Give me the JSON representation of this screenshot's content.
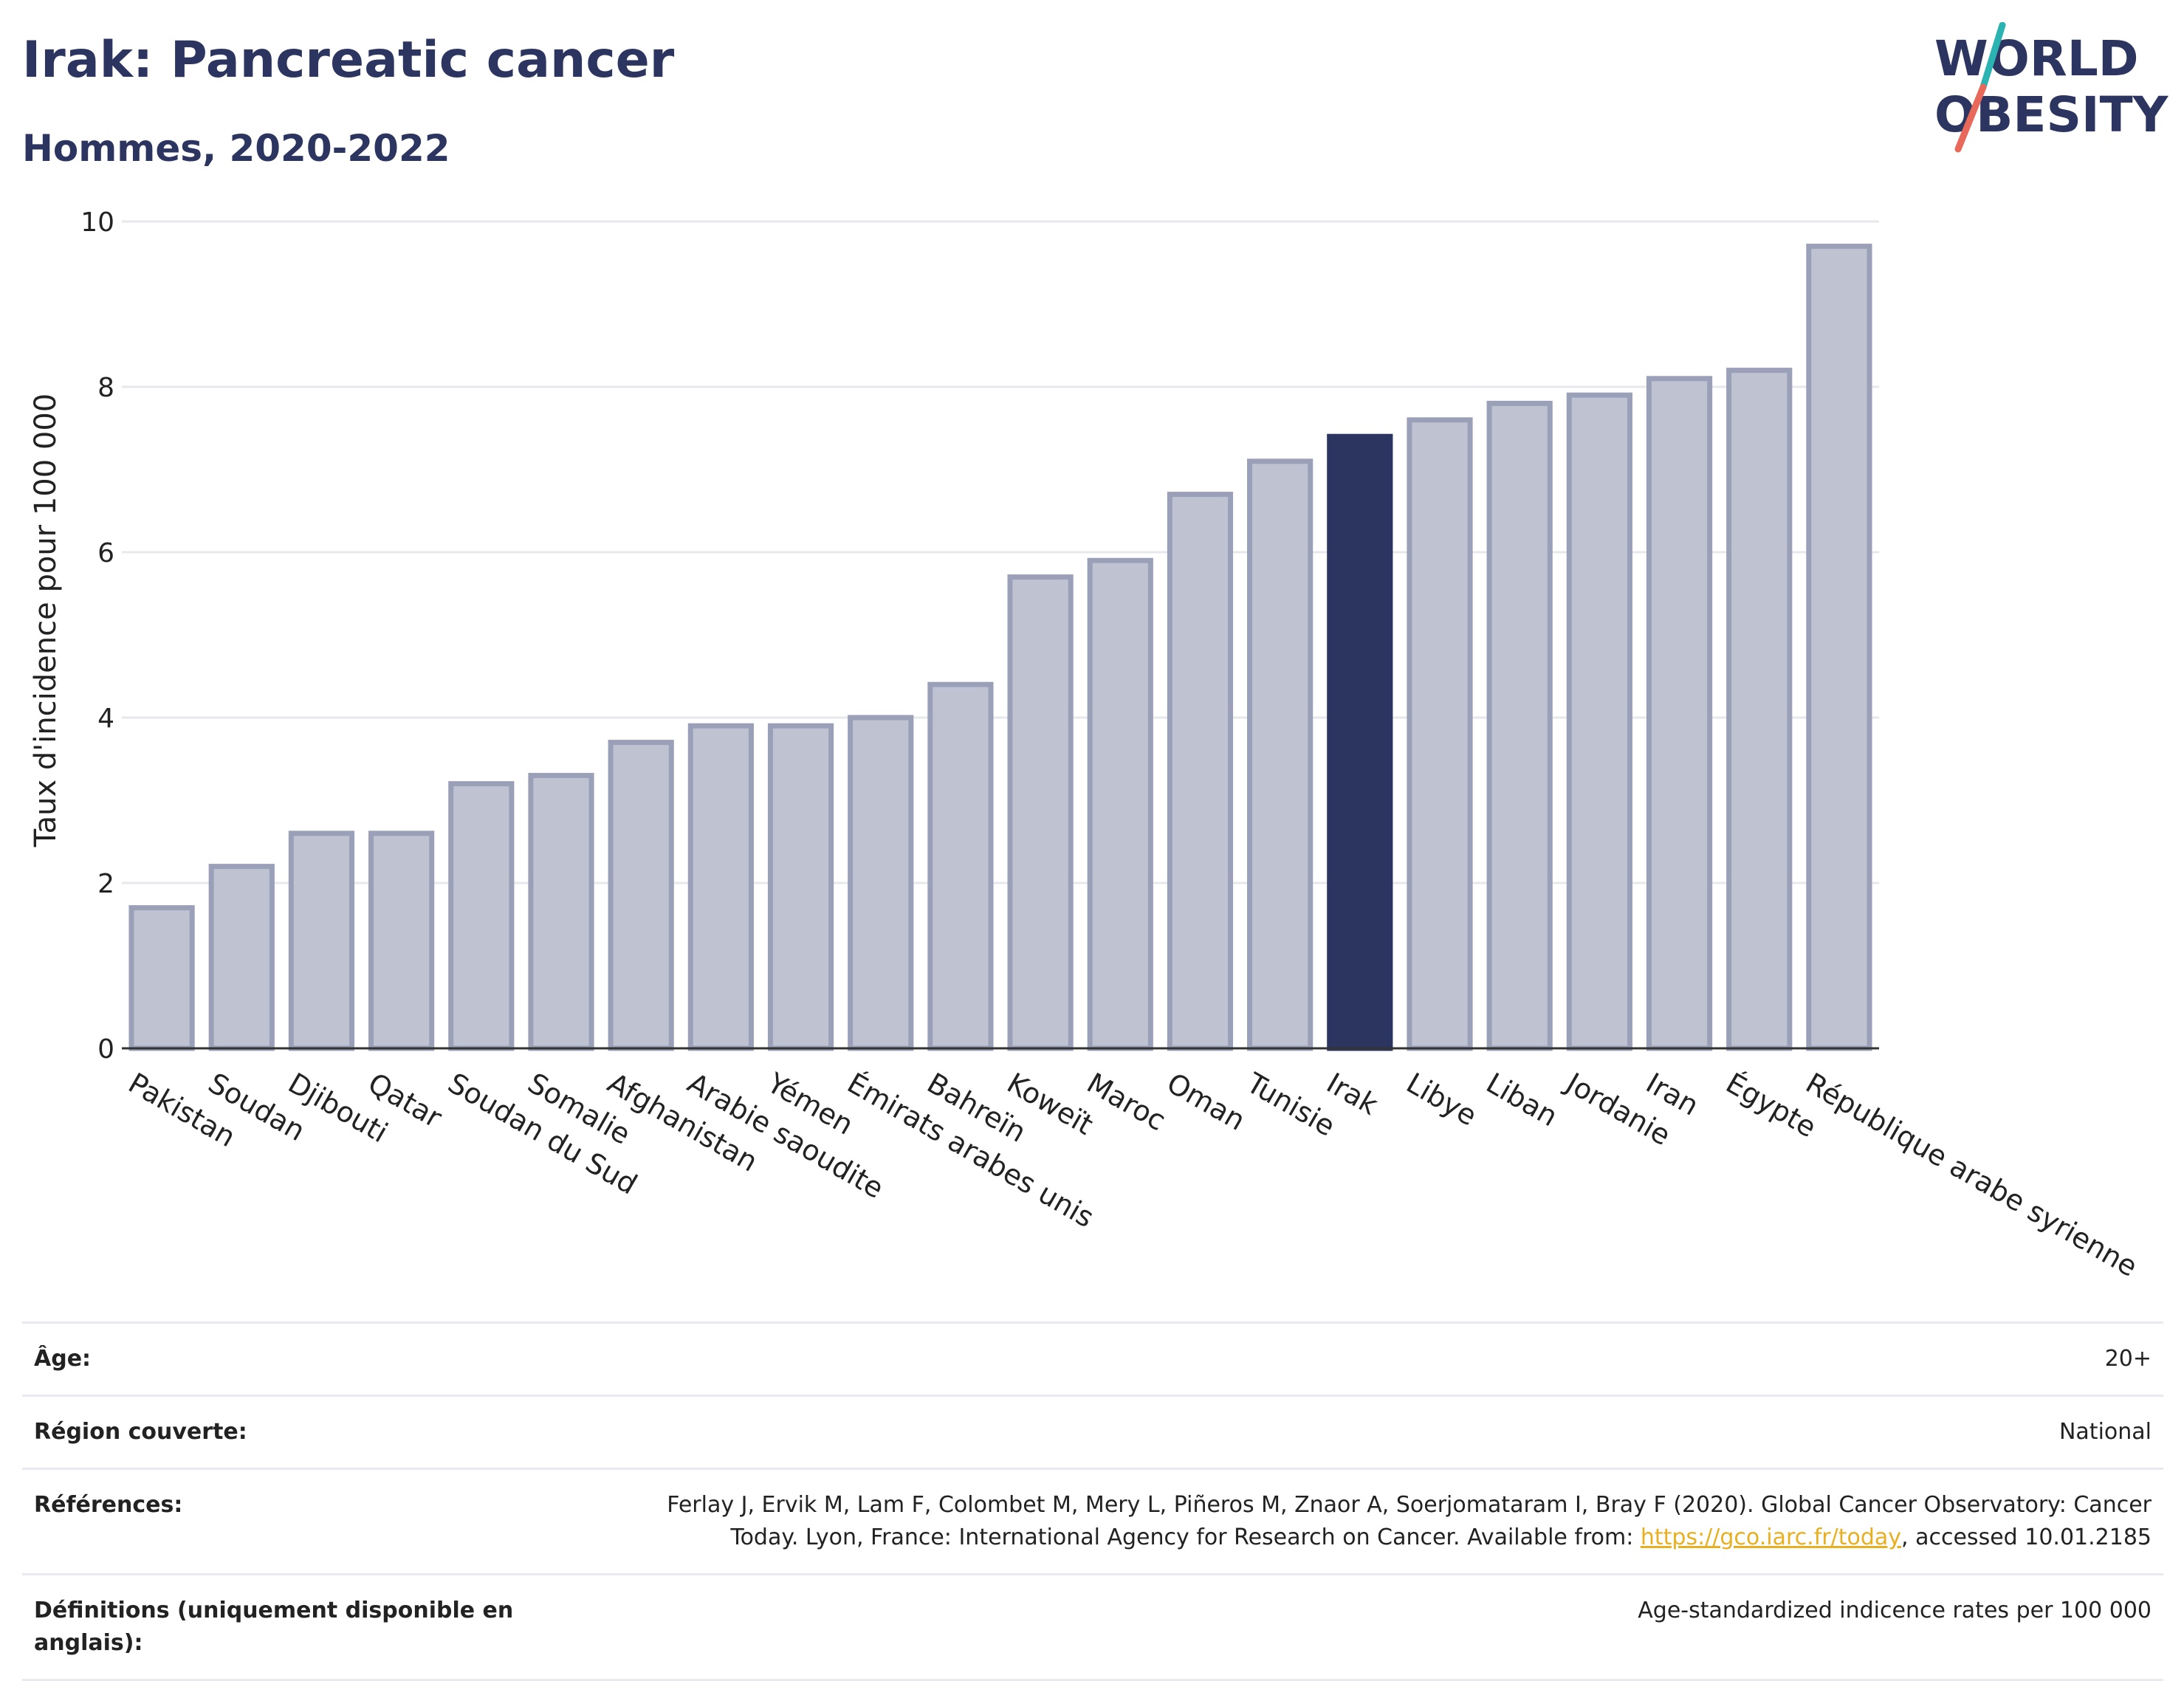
{
  "header": {
    "title": "Irak: Pancreatic cancer",
    "subtitle": "Hommes, 2020-2022"
  },
  "logo": {
    "line1": "WORLD",
    "line2": "OBESITY",
    "colors": {
      "text": "#2b3560",
      "slash_top": "#2ab3b0",
      "slash_bottom": "#e8685a"
    }
  },
  "colors": {
    "bar_fill": "#bfc3d1",
    "bar_stroke": "#9aa0b8",
    "highlight": "#2b3560",
    "grid": "#e6e8ee",
    "axis": "#333333"
  },
  "chart_data": {
    "type": "bar",
    "title": "Irak: Pancreatic cancer",
    "subtitle": "Hommes, 2020-2022",
    "xlabel": "",
    "ylabel": "Taux d'incidence pour 100 000",
    "ylim": [
      0,
      10
    ],
    "yticks": [
      0,
      2,
      4,
      6,
      8,
      10
    ],
    "grid": true,
    "highlight": "Irak",
    "categories": [
      "Pakistan",
      "Soudan",
      "Djibouti",
      "Qatar",
      "Soudan du Sud",
      "Somalie",
      "Afghanistan",
      "Arabie saoudite",
      "Yémen",
      "Émirats arabes unis",
      "Bahreïn",
      "Koweït",
      "Maroc",
      "Oman",
      "Tunisie",
      "Irak",
      "Libye",
      "Liban",
      "Jordanie",
      "Iran",
      "Égypte",
      "République arabe syrienne"
    ],
    "values": [
      1.7,
      2.2,
      2.6,
      2.6,
      3.2,
      3.3,
      3.7,
      3.9,
      3.9,
      4.0,
      4.4,
      5.7,
      5.9,
      6.7,
      7.1,
      7.4,
      7.6,
      7.8,
      7.9,
      8.1,
      8.2,
      9.7
    ]
  },
  "info": {
    "age_label": "Âge:",
    "age_value": "20+",
    "region_label": "Région couverte:",
    "region_value": "National",
    "references_label": "Références:",
    "references_text_1": "Ferlay J, Ervik M, Lam F, Colombet M, Mery L, Piñeros M, Znaor A, Soerjomataram I, Bray F (2020). Global Cancer Observatory: Cancer Today. Lyon, France: International Agency for Research on Cancer. Available from: ",
    "references_link": "https://gco.iarc.fr/today",
    "references_text_2": ", accessed 10.01.2185",
    "definitions_label": "Définitions (uniquement disponible en anglais):",
    "definitions_value": "Age-standardized indicence rates per 100 000"
  }
}
